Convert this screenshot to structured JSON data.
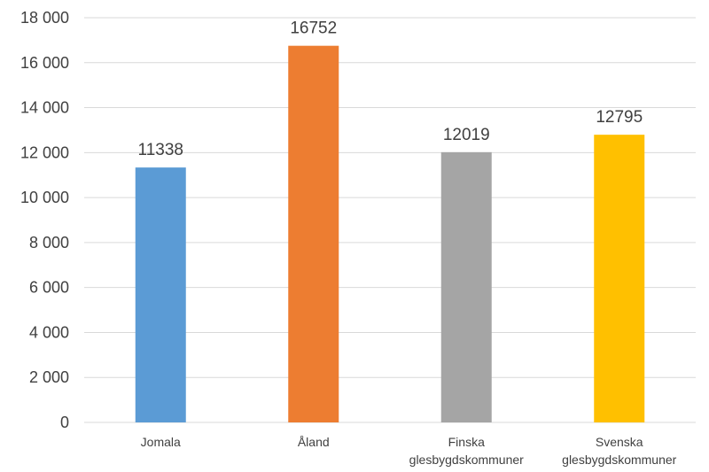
{
  "chart_data": {
    "type": "bar",
    "categories": [
      [
        "Jomala"
      ],
      [
        "Åland"
      ],
      [
        "Finska",
        "glesbygdskommuner"
      ],
      [
        "Svenska",
        "glesbygdskommuner"
      ]
    ],
    "values": [
      11338,
      16752,
      12019,
      12795
    ],
    "data_labels": [
      "11338",
      "16752",
      "12019",
      "12795"
    ],
    "colors": [
      "#5b9bd5",
      "#ed7d31",
      "#a5a5a5",
      "#ffc000"
    ],
    "ylim": [
      0,
      18000
    ],
    "yticks": [
      0,
      2000,
      4000,
      6000,
      8000,
      10000,
      12000,
      14000,
      16000,
      18000
    ],
    "ytick_labels": [
      "0",
      "2 000",
      "4 000",
      "6 000",
      "8 000",
      "10 000",
      "12 000",
      "14 000",
      "16 000",
      "18 000"
    ],
    "grid": true,
    "title": "",
    "xlabel": "",
    "ylabel": ""
  }
}
